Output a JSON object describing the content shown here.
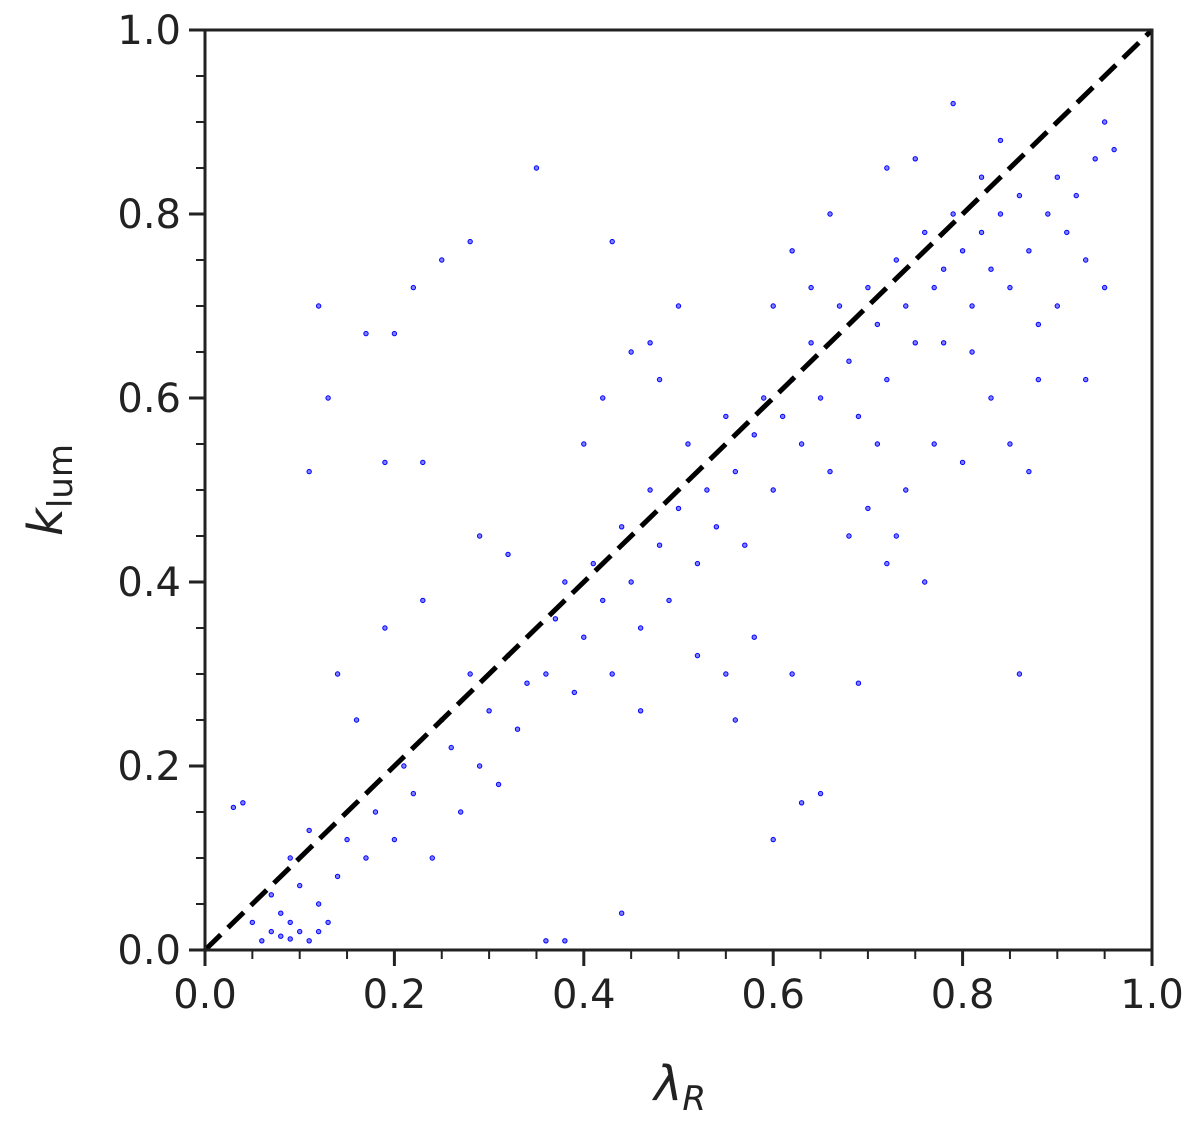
{
  "chart_data": {
    "type": "scatter",
    "x_label": "λ",
    "x_label_subscript": "R",
    "y_label": "k",
    "y_label_subscript": "lum",
    "color": "#0000ff",
    "xlim": [
      0,
      1
    ],
    "ylim": [
      0,
      1
    ],
    "xticks": [
      {
        "value": 0,
        "label": "0.0"
      },
      0.2,
      0.4,
      0.6,
      0.8,
      {
        "value": 1,
        "label": "1.0"
      }
    ],
    "yticks": [
      {
        "value": 0,
        "label": "0.0"
      },
      0.2,
      0.4,
      0.6,
      0.8,
      {
        "value": 1,
        "label": "1.0"
      }
    ],
    "xminorticks": [
      0.05,
      0.1,
      0.15,
      0.25,
      0.3,
      0.35,
      0.45,
      0.5,
      0.55,
      0.65,
      0.7,
      0.75,
      0.85,
      0.9,
      0.95
    ],
    "yminorticks": [
      0.05,
      0.1,
      0.15,
      0.25,
      0.3,
      0.35,
      0.45,
      0.5,
      0.55,
      0.65,
      0.7,
      0.75,
      0.85,
      0.9,
      0.95
    ],
    "reference_line": {
      "x": [
        0,
        1
      ],
      "y": [
        0,
        1
      ],
      "color": "#000000",
      "dashed": true
    },
    "x": [
      0.06,
      0.07,
      0.08,
      0.09,
      0.1,
      0.11,
      0.08,
      0.12,
      0.07,
      0.1,
      0.13,
      0.14,
      0.09,
      0.05,
      0.15,
      0.11,
      0.04,
      0.03,
      0.12,
      0.09,
      0.17,
      0.18,
      0.2,
      0.21,
      0.22,
      0.24,
      0.25,
      0.26,
      0.27,
      0.28,
      0.29,
      0.3,
      0.31,
      0.32,
      0.33,
      0.34,
      0.16,
      0.19,
      0.23,
      0.14,
      0.12,
      0.13,
      0.17,
      0.2,
      0.22,
      0.25,
      0.28,
      0.35,
      0.11,
      0.19,
      0.23,
      0.36,
      0.38,
      0.44,
      0.29,
      0.32,
      0.36,
      0.37,
      0.38,
      0.39,
      0.4,
      0.41,
      0.42,
      0.43,
      0.44,
      0.45,
      0.46,
      0.47,
      0.48,
      0.49,
      0.5,
      0.51,
      0.52,
      0.53,
      0.54,
      0.55,
      0.56,
      0.57,
      0.58,
      0.59,
      0.4,
      0.42,
      0.45,
      0.48,
      0.5,
      0.43,
      0.47,
      0.46,
      0.52,
      0.55,
      0.58,
      0.6,
      0.63,
      0.65,
      0.56,
      0.62,
      0.6,
      0.61,
      0.62,
      0.63,
      0.64,
      0.65,
      0.66,
      0.67,
      0.68,
      0.69,
      0.7,
      0.71,
      0.72,
      0.73,
      0.74,
      0.75,
      0.76,
      0.77,
      0.78,
      0.79,
      0.6,
      0.62,
      0.64,
      0.66,
      0.68,
      0.7,
      0.72,
      0.74,
      0.76,
      0.69,
      0.71,
      0.73,
      0.77,
      0.79,
      0.75,
      0.72,
      0.8,
      0.81,
      0.82,
      0.83,
      0.84,
      0.85,
      0.86,
      0.87,
      0.88,
      0.89,
      0.9,
      0.91,
      0.92,
      0.93,
      0.94,
      0.95,
      0.96,
      0.81,
      0.83,
      0.85,
      0.8,
      0.86,
      0.87,
      0.88,
      0.9,
      0.84,
      0.82,
      0.78,
      0.93,
      0.95
    ],
    "y": [
      0.01,
      0.02,
      0.015,
      0.03,
      0.02,
      0.01,
      0.04,
      0.05,
      0.06,
      0.07,
      0.03,
      0.08,
      0.1,
      0.03,
      0.12,
      0.13,
      0.16,
      0.155,
      0.02,
      0.012,
      0.1,
      0.15,
      0.12,
      0.2,
      0.17,
      0.1,
      0.25,
      0.22,
      0.15,
      0.3,
      0.2,
      0.26,
      0.18,
      0.32,
      0.24,
      0.29,
      0.25,
      0.35,
      0.38,
      0.3,
      0.7,
      0.6,
      0.67,
      0.67,
      0.72,
      0.75,
      0.77,
      0.85,
      0.52,
      0.53,
      0.53,
      0.01,
      0.01,
      0.04,
      0.45,
      0.43,
      0.3,
      0.36,
      0.4,
      0.28,
      0.34,
      0.42,
      0.38,
      0.3,
      0.46,
      0.4,
      0.35,
      0.5,
      0.44,
      0.38,
      0.48,
      0.55,
      0.42,
      0.5,
      0.46,
      0.58,
      0.52,
      0.44,
      0.56,
      0.6,
      0.55,
      0.6,
      0.65,
      0.62,
      0.7,
      0.77,
      0.66,
      0.26,
      0.32,
      0.3,
      0.34,
      0.12,
      0.16,
      0.17,
      0.25,
      0.3,
      0.5,
      0.58,
      0.62,
      0.55,
      0.66,
      0.6,
      0.52,
      0.7,
      0.64,
      0.58,
      0.72,
      0.68,
      0.62,
      0.75,
      0.7,
      0.66,
      0.78,
      0.72,
      0.74,
      0.8,
      0.7,
      0.76,
      0.72,
      0.8,
      0.45,
      0.48,
      0.42,
      0.5,
      0.4,
      0.29,
      0.55,
      0.45,
      0.55,
      0.92,
      0.86,
      0.85,
      0.76,
      0.7,
      0.78,
      0.74,
      0.8,
      0.72,
      0.82,
      0.76,
      0.68,
      0.8,
      0.84,
      0.78,
      0.82,
      0.75,
      0.86,
      0.9,
      0.87,
      0.65,
      0.6,
      0.55,
      0.53,
      0.3,
      0.52,
      0.62,
      0.7,
      0.88,
      0.84,
      0.66,
      0.62,
      0.72
    ]
  }
}
